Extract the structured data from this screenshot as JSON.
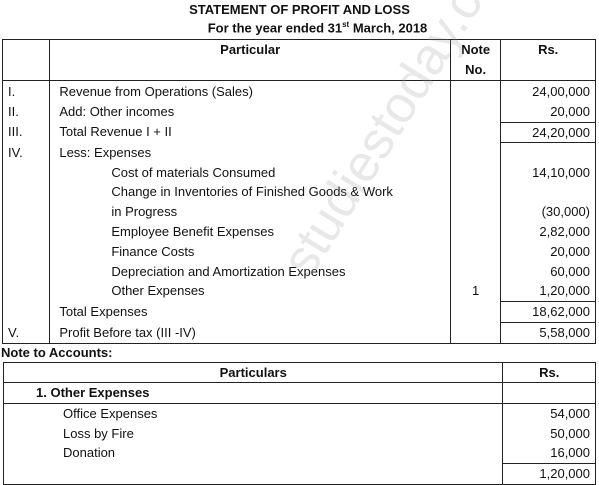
{
  "title": "STATEMENT OF PROFIT AND LOSS",
  "subtitle_pre": "For the year ended 31",
  "subtitle_sup": "st",
  "subtitle_post": " March, 2018",
  "headers": {
    "particular": "Particular",
    "note_line1": "Note",
    "note_line2": "No.",
    "amount": "Rs."
  },
  "rows": [
    {
      "num": "I.",
      "label": "Revenue from Operations (Sales)",
      "note": "",
      "amount": "24,00,000",
      "indent": 1
    },
    {
      "num": "II.",
      "label": "Add: Other incomes",
      "note": "",
      "amount": "20,000",
      "indent": 1
    },
    {
      "num": "III.",
      "label": "Total Revenue I + II",
      "note": "",
      "amount": "24,20,000",
      "indent": 1
    },
    {
      "num": "IV.",
      "label": "Less: Expenses",
      "note": "",
      "amount": "",
      "indent": 1
    },
    {
      "num": "",
      "label": "Cost of materials Consumed",
      "note": "",
      "amount": "14,10,000",
      "indent": 2
    },
    {
      "num": "",
      "label": "Change in Inventories of Finished Goods & Work",
      "note": "",
      "amount": "",
      "indent": 2
    },
    {
      "num": "",
      "label": "in Progress",
      "note": "",
      "amount": "(30,000)",
      "indent": 2
    },
    {
      "num": "",
      "label": "Employee Benefit Expenses",
      "note": "",
      "amount": "2,82,000",
      "indent": 2
    },
    {
      "num": "",
      "label": "Finance Costs",
      "note": "",
      "amount": "20,000",
      "indent": 2
    },
    {
      "num": "",
      "label": "Depreciation and Amortization Expenses",
      "note": "",
      "amount": "60,000",
      "indent": 2
    },
    {
      "num": "",
      "label": "Other Expenses",
      "note": "1",
      "amount": "1,20,000",
      "indent": 2
    },
    {
      "num": "",
      "label": "Total Expenses",
      "note": "",
      "amount": "18,62,000",
      "indent": 1
    },
    {
      "num": "V.",
      "label": "Profit Before tax (III -IV)",
      "note": "",
      "amount": "5,58,000",
      "indent": 1
    }
  ],
  "notes_title": "Note to Accounts:",
  "notes_headers": {
    "particulars": "Particulars",
    "amount": "Rs."
  },
  "notes_heading": "1.   Other Expenses",
  "notes_rows": [
    {
      "label": "Office Expenses",
      "amount": "54,000"
    },
    {
      "label": "Loss by Fire",
      "amount": "50,000"
    },
    {
      "label": "Donation",
      "amount": "16,000"
    }
  ],
  "notes_total": "1,20,000",
  "watermark": "studiestoday.com"
}
